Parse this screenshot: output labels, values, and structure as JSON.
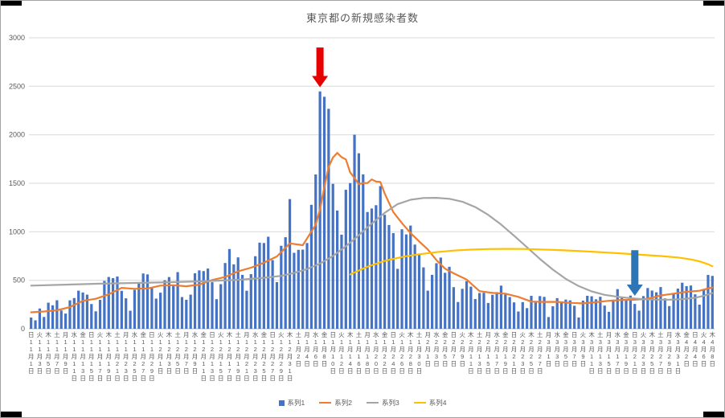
{
  "frame": {
    "background": "#FFFFFF",
    "border_color": "#A3A3A3",
    "corner_mark_color": "#000000"
  },
  "chart_data": {
    "type": "bar",
    "combo": "bar series + 3 line series overlay",
    "title": "東京都の新規感染者数",
    "xlabel": "",
    "ylabel": "",
    "ylim": [
      0,
      3000
    ],
    "yticks": [
      0,
      500,
      1000,
      1500,
      2000,
      2500,
      3000
    ],
    "grid": "horizontal",
    "legend_position": "bottom",
    "x_range": "2020-11-01 to 2021-04-08, one bar per day",
    "x_tick_interval_days": 2,
    "x_ticks": [
      [
        "日",
        11,
        1
      ],
      [
        "火",
        11,
        3
      ],
      [
        "木",
        11,
        5
      ],
      [
        "土",
        11,
        7
      ],
      [
        "月",
        11,
        9
      ],
      [
        "水",
        11,
        11
      ],
      [
        "金",
        11,
        13
      ],
      [
        "日",
        11,
        15
      ],
      [
        "火",
        11,
        17
      ],
      [
        "木",
        11,
        19
      ],
      [
        "土",
        11,
        21
      ],
      [
        "月",
        11,
        23
      ],
      [
        "水",
        11,
        25
      ],
      [
        "金",
        11,
        27
      ],
      [
        "日",
        11,
        29
      ],
      [
        "火",
        12,
        1
      ],
      [
        "木",
        12,
        3
      ],
      [
        "土",
        12,
        5
      ],
      [
        "月",
        12,
        7
      ],
      [
        "水",
        12,
        9
      ],
      [
        "金",
        12,
        11
      ],
      [
        "日",
        12,
        13
      ],
      [
        "火",
        12,
        15
      ],
      [
        "木",
        12,
        17
      ],
      [
        "土",
        12,
        19
      ],
      [
        "月",
        12,
        21
      ],
      [
        "水",
        12,
        23
      ],
      [
        "金",
        12,
        25
      ],
      [
        "日",
        12,
        27
      ],
      [
        "火",
        12,
        29
      ],
      [
        "木",
        12,
        31
      ],
      [
        "土",
        1,
        2
      ],
      [
        "月",
        1,
        4
      ],
      [
        "水",
        1,
        6
      ],
      [
        "金",
        1,
        8
      ],
      [
        "日",
        1,
        10
      ],
      [
        "火",
        1,
        12
      ],
      [
        "木",
        1,
        14
      ],
      [
        "土",
        1,
        16
      ],
      [
        "月",
        1,
        18
      ],
      [
        "水",
        1,
        20
      ],
      [
        "金",
        1,
        22
      ],
      [
        "日",
        1,
        24
      ],
      [
        "火",
        1,
        26
      ],
      [
        "木",
        1,
        28
      ],
      [
        "土",
        1,
        30
      ],
      [
        "月",
        2,
        1
      ],
      [
        "水",
        2,
        3
      ],
      [
        "金",
        2,
        5
      ],
      [
        "日",
        2,
        7
      ],
      [
        "火",
        2,
        9
      ],
      [
        "木",
        2,
        11
      ],
      [
        "土",
        2,
        13
      ],
      [
        "月",
        2,
        15
      ],
      [
        "水",
        2,
        17
      ],
      [
        "金",
        2,
        19
      ],
      [
        "日",
        2,
        21
      ],
      [
        "火",
        2,
        23
      ],
      [
        "木",
        2,
        25
      ],
      [
        "土",
        2,
        27
      ],
      [
        "月",
        3,
        1
      ],
      [
        "水",
        3,
        3
      ],
      [
        "金",
        3,
        5
      ],
      [
        "日",
        3,
        7
      ],
      [
        "火",
        3,
        9
      ],
      [
        "木",
        3,
        11
      ],
      [
        "土",
        3,
        13
      ],
      [
        "月",
        3,
        15
      ],
      [
        "水",
        3,
        17
      ],
      [
        "金",
        3,
        19
      ],
      [
        "日",
        3,
        21
      ],
      [
        "火",
        3,
        23
      ],
      [
        "木",
        3,
        25
      ],
      [
        "土",
        3,
        27
      ],
      [
        "月",
        3,
        29
      ],
      [
        "水",
        3,
        31
      ],
      [
        "金",
        4,
        2
      ],
      [
        "日",
        4,
        4
      ],
      [
        "火",
        4,
        6
      ],
      [
        "木",
        4,
        8
      ]
    ],
    "bar_series": {
      "name": "系列1",
      "color": "#4472C4",
      "values": [
        116,
        87,
        209,
        122,
        269,
        242,
        294,
        189,
        157,
        293,
        317,
        393,
        374,
        352,
        255,
        180,
        298,
        493,
        534,
        522,
        539,
        391,
        314,
        186,
        401,
        481,
        570,
        561,
        418,
        311,
        372,
        500,
        533,
        449,
        584,
        327,
        299,
        352,
        572,
        602,
        595,
        621,
        480,
        305,
        460,
        678,
        822,
        664,
        736,
        556,
        392,
        563,
        748,
        888,
        884,
        949,
        708,
        481,
        856,
        944,
        1337,
        783,
        814,
        816,
        884,
        1278,
        1591,
        2447,
        2392,
        2268,
        1494,
        1219,
        970,
        1433,
        1502,
        2001,
        1809,
        1592,
        1204,
        1240,
        1274,
        1471,
        1175,
        1070,
        986,
        618,
        1026,
        973,
        1064,
        868,
        769,
        633,
        393,
        556,
        676,
        734,
        577,
        639,
        429,
        276,
        412,
        491,
        434,
        307,
        369,
        371,
        266,
        350,
        378,
        445,
        353,
        327,
        272,
        178,
        275,
        213,
        340,
        270,
        337,
        329,
        121,
        232,
        316,
        279,
        301,
        293,
        237,
        116,
        290,
        340,
        335,
        304,
        330,
        239,
        175,
        300,
        409,
        323,
        303,
        342,
        256,
        187,
        337,
        420,
        394,
        376,
        430,
        313,
        234,
        364,
        414,
        475,
        440,
        446,
        355,
        249,
        399,
        555,
        545
      ]
    },
    "line_series": [
      {
        "name": "系列2",
        "color": "#ED7D31",
        "points": [
          [
            0,
            170
          ],
          [
            3,
            178
          ],
          [
            6,
            191
          ],
          [
            9,
            224
          ],
          [
            12,
            288
          ],
          [
            15,
            309
          ],
          [
            18,
            355
          ],
          [
            21,
            422
          ],
          [
            24,
            412
          ],
          [
            27,
            415
          ],
          [
            30,
            445
          ],
          [
            33,
            449
          ],
          [
            36,
            438
          ],
          [
            39,
            455
          ],
          [
            42,
            503
          ],
          [
            45,
            534
          ],
          [
            48,
            592
          ],
          [
            51,
            630
          ],
          [
            54,
            681
          ],
          [
            57,
            746
          ],
          [
            60,
            880
          ],
          [
            63,
            862
          ],
          [
            66,
            1072
          ],
          [
            67,
            1230
          ],
          [
            68,
            1460
          ],
          [
            69,
            1668
          ],
          [
            70,
            1765
          ],
          [
            71,
            1813
          ],
          [
            72,
            1769
          ],
          [
            73,
            1746
          ],
          [
            74,
            1611
          ],
          [
            75,
            1555
          ],
          [
            76,
            1490
          ],
          [
            77,
            1504
          ],
          [
            78,
            1502
          ],
          [
            79,
            1540
          ],
          [
            80,
            1517
          ],
          [
            81,
            1513
          ],
          [
            82,
            1395
          ],
          [
            84,
            1203
          ],
          [
            86,
            1089
          ],
          [
            88,
            987
          ],
          [
            90,
            901
          ],
          [
            92,
            818
          ],
          [
            94,
            708
          ],
          [
            96,
            620
          ],
          [
            98,
            572
          ],
          [
            101,
            508
          ],
          [
            104,
            388
          ],
          [
            107,
            370
          ],
          [
            110,
            362
          ],
          [
            113,
            329
          ],
          [
            116,
            280
          ],
          [
            119,
            277
          ],
          [
            122,
            278
          ],
          [
            125,
            267
          ],
          [
            128,
            262
          ],
          [
            131,
            274
          ],
          [
            134,
            288
          ],
          [
            137,
            297
          ],
          [
            140,
            299
          ],
          [
            143,
            310
          ],
          [
            146,
            343
          ],
          [
            149,
            362
          ],
          [
            152,
            381
          ],
          [
            155,
            392
          ],
          [
            158,
            427
          ]
        ]
      },
      {
        "name": "系列3",
        "color": "#A5A5A5",
        "points": [
          [
            0,
            445
          ],
          [
            8,
            455
          ],
          [
            16,
            465
          ],
          [
            24,
            472
          ],
          [
            32,
            480
          ],
          [
            40,
            490
          ],
          [
            48,
            505
          ],
          [
            54,
            525
          ],
          [
            58,
            545
          ],
          [
            61,
            575
          ],
          [
            64,
            615
          ],
          [
            67,
            672
          ],
          [
            70,
            750
          ],
          [
            73,
            850
          ],
          [
            76,
            965
          ],
          [
            79,
            1085
          ],
          [
            82,
            1195
          ],
          [
            85,
            1285
          ],
          [
            88,
            1330
          ],
          [
            91,
            1348
          ],
          [
            94,
            1350
          ],
          [
            97,
            1340
          ],
          [
            100,
            1310
          ],
          [
            103,
            1255
          ],
          [
            106,
            1175
          ],
          [
            109,
            1075
          ],
          [
            112,
            960
          ],
          [
            115,
            840
          ],
          [
            118,
            720
          ],
          [
            121,
            610
          ],
          [
            124,
            515
          ],
          [
            127,
            440
          ],
          [
            130,
            385
          ],
          [
            133,
            350
          ],
          [
            136,
            330
          ],
          [
            139,
            315
          ],
          [
            142,
            305
          ],
          [
            145,
            300
          ],
          [
            148,
            300
          ],
          [
            151,
            305
          ],
          [
            154,
            320
          ],
          [
            156,
            340
          ],
          [
            158,
            368
          ]
        ]
      },
      {
        "name": "系列4",
        "color": "#FFC000",
        "points": [
          [
            74,
            560
          ],
          [
            78,
            640
          ],
          [
            82,
            700
          ],
          [
            86,
            740
          ],
          [
            90,
            768
          ],
          [
            94,
            790
          ],
          [
            98,
            806
          ],
          [
            102,
            816
          ],
          [
            106,
            822
          ],
          [
            110,
            824
          ],
          [
            114,
            823
          ],
          [
            118,
            818
          ],
          [
            122,
            812
          ],
          [
            126,
            804
          ],
          [
            130,
            795
          ],
          [
            134,
            785
          ],
          [
            138,
            774
          ],
          [
            142,
            762
          ],
          [
            146,
            750
          ],
          [
            150,
            735
          ],
          [
            153,
            715
          ],
          [
            155,
            695
          ],
          [
            157,
            665
          ],
          [
            158,
            645
          ]
        ]
      }
    ],
    "annotations": [
      {
        "name": "red-arrow",
        "shape": "down-arrow",
        "color": "#E60000",
        "x_index": 67,
        "value_top": 2900,
        "value_tip": 2490
      },
      {
        "name": "blue-arrow",
        "shape": "down-arrow",
        "color": "#2E75B6",
        "x_index": 140,
        "value_top": 810,
        "value_tip": 340
      }
    ],
    "legend_items": [
      "系列1",
      "系列2",
      "系列3",
      "系列4"
    ]
  }
}
